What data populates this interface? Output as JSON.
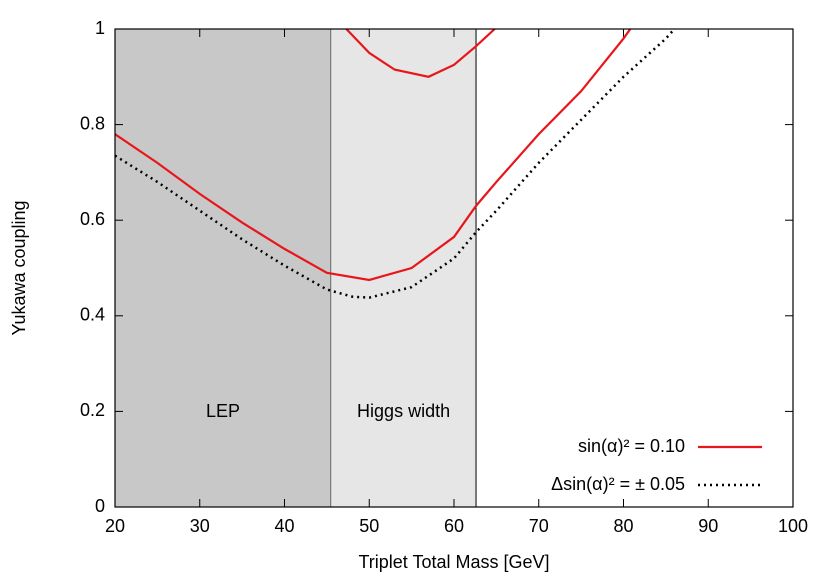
{
  "chart_data": {
    "type": "line",
    "xlabel": "Triplet Total Mass [GeV]",
    "ylabel": "Yukawa coupling",
    "xlim": [
      20,
      100
    ],
    "ylim": [
      0,
      1
    ],
    "xticks": [
      20,
      30,
      40,
      50,
      60,
      70,
      80,
      90,
      100
    ],
    "yticks": [
      0,
      0.2,
      0.4,
      0.6,
      0.8,
      1
    ],
    "grid": false,
    "legend": "bottom right",
    "regions": [
      {
        "label": "LEP",
        "from": 20,
        "to": 45.5,
        "color": "#c8c8c8"
      },
      {
        "label": "Higgs width",
        "from": 45.5,
        "to": 62.6,
        "color": "#e6e6e6"
      }
    ],
    "series": [
      {
        "name": "sin(α)² = 0.10",
        "color": "#e8161b",
        "style": "solid",
        "x": [
          20,
          25,
          30,
          35,
          40,
          45,
          50,
          55,
          60,
          62.6,
          65,
          70,
          75,
          80,
          80.8,
          null,
          47.3,
          50,
          53,
          57,
          60,
          62.6,
          64.8
        ],
        "values": [
          0.78,
          0.72,
          0.655,
          0.595,
          0.54,
          0.49,
          0.475,
          0.5,
          0.565,
          0.63,
          0.68,
          0.78,
          0.87,
          0.98,
          1.0,
          null,
          1.0,
          0.95,
          0.915,
          0.9,
          0.925,
          0.964,
          1.0
        ]
      },
      {
        "name": "Δsin(α)² = ± 0.05",
        "color": "#000000",
        "style": "dotted",
        "x": [
          20,
          25,
          30,
          35,
          40,
          45,
          48,
          50,
          55,
          60,
          62.6,
          65,
          70,
          75,
          80,
          85,
          86
        ],
        "values": [
          0.735,
          0.68,
          0.62,
          0.56,
          0.505,
          0.455,
          0.44,
          0.438,
          0.46,
          0.52,
          0.575,
          0.62,
          0.72,
          0.81,
          0.9,
          0.98,
          1.0
        ]
      }
    ]
  }
}
